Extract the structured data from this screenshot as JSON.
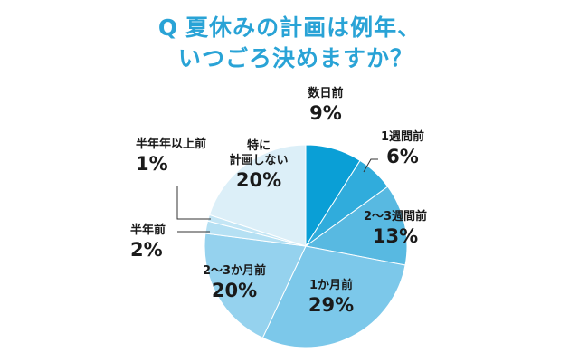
{
  "title": {
    "q": "Q",
    "line1": "夏休みの計画は例年、",
    "line2": "いつごろ決めますか？"
  },
  "chart_data": {
    "type": "pie",
    "title": "夏休みの計画は例年、いつごろ決めますか？",
    "slices": [
      {
        "label": "数日前",
        "value": 9,
        "value_label": "9%",
        "color": "#0a9fd6"
      },
      {
        "label": "1週間前",
        "value": 6,
        "value_label": "6%",
        "color": "#30acdc"
      },
      {
        "label": "2〜3週間前",
        "value": 13,
        "value_label": "13%",
        "color": "#58b9e1"
      },
      {
        "label": "1か月前",
        "value": 29,
        "value_label": "29%",
        "color": "#7cc8ea"
      },
      {
        "label": "2〜3か月前",
        "value": 20,
        "value_label": "20%",
        "color": "#95d2ee"
      },
      {
        "label": "半年前",
        "value": 2,
        "value_label": "2%",
        "color": "#b5e0f3"
      },
      {
        "label": "半年年以上前",
        "value": 1,
        "value_label": "1%",
        "color": "#c4e6f5"
      },
      {
        "label": "特に計画しない",
        "value": 20,
        "value_label": "20%",
        "color": "#dceff8"
      }
    ]
  },
  "labels": {
    "s0_name": "数日前",
    "s1_name": "1週間前",
    "s2_name": "2〜3週間前",
    "s3_name": "1か月前",
    "s4_name": "2〜3か月前",
    "s5_name": "半年前",
    "s6_name": "半年年以上前",
    "s7_name_line1": "特に",
    "s7_name_line2": "計画しない"
  }
}
